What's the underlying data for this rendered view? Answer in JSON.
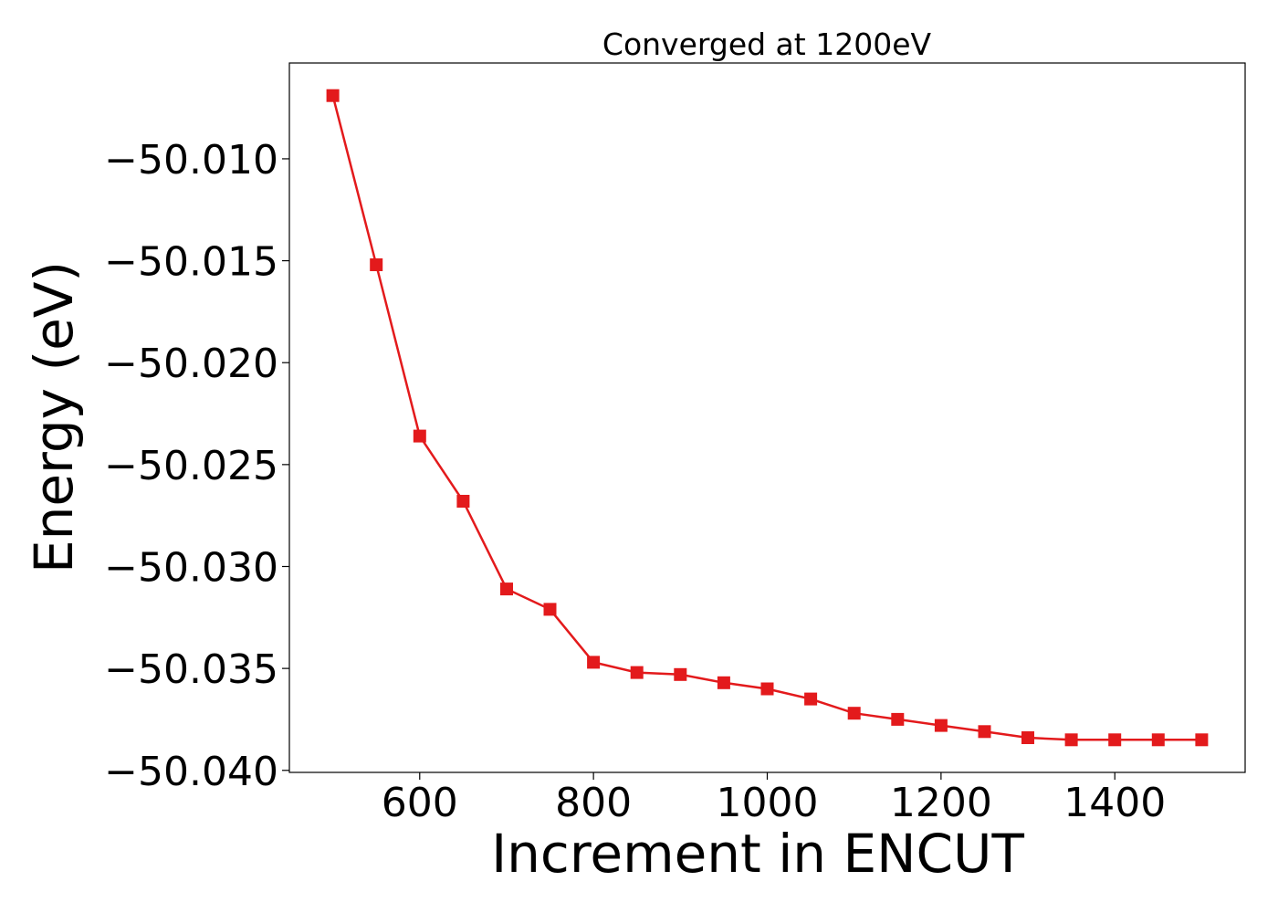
{
  "chart_data": {
    "type": "line",
    "title": "Converged at 1200eV",
    "xlabel": "Increment in ENCUT",
    "ylabel": "Energy (eV)",
    "xlim": [
      450,
      1550
    ],
    "ylim": [
      -50.0401,
      -50.0053
    ],
    "x_ticks": [
      600,
      800,
      1000,
      1200,
      1400
    ],
    "x_tick_labels": [
      "600",
      "800",
      "1000",
      "1200",
      "1400"
    ],
    "y_ticks": [
      -50.01,
      -50.015,
      -50.02,
      -50.025,
      -50.03,
      -50.035,
      -50.04
    ],
    "y_tick_labels": [
      "−50.010",
      "−50.015",
      "−50.020",
      "−50.025",
      "−50.030",
      "−50.035",
      "−50.040"
    ],
    "grid": false,
    "series": [
      {
        "color": "#e31a1c",
        "marker": "square",
        "x": [
          500,
          550,
          600,
          650,
          700,
          750,
          800,
          850,
          900,
          950,
          1000,
          1050,
          1100,
          1150,
          1200,
          1250,
          1300,
          1350,
          1400,
          1450,
          1500
        ],
        "y": [
          -50.0069,
          -50.0152,
          -50.0236,
          -50.0268,
          -50.0311,
          -50.0321,
          -50.0347,
          -50.0352,
          -50.0353,
          -50.0357,
          -50.036,
          -50.0365,
          -50.0372,
          -50.0375,
          -50.0378,
          -50.0381,
          -50.0384,
          -50.0385,
          -50.0385,
          -50.0385,
          -50.0385
        ]
      }
    ]
  }
}
